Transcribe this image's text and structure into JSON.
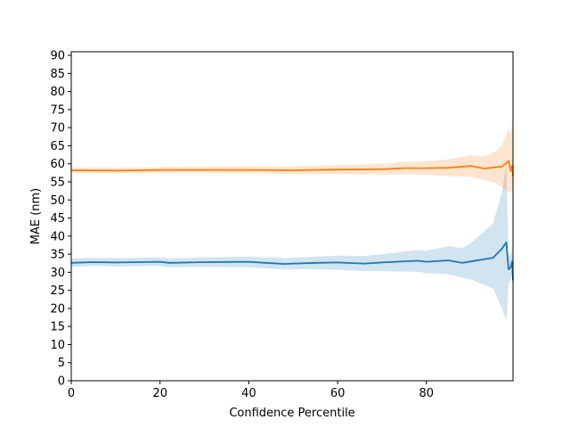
{
  "chart_data": {
    "type": "line",
    "xlabel": "Confidence Percentile",
    "ylabel": "MAE (nm)",
    "xlim": [
      0,
      99.5
    ],
    "ylim": [
      0,
      91
    ],
    "x_ticks": [
      0,
      20,
      40,
      60,
      80
    ],
    "y_ticks": [
      0,
      5,
      10,
      15,
      20,
      25,
      30,
      35,
      40,
      45,
      50,
      55,
      60,
      65,
      70,
      75,
      80,
      85,
      90
    ],
    "grid": false,
    "legend": "none",
    "series": [
      {
        "color": "#1f77b4",
        "band_color": "#1f77b4",
        "x": [
          0,
          5,
          10,
          20,
          22,
          30,
          40,
          45,
          48,
          55,
          60,
          66,
          70,
          78,
          80,
          85,
          88,
          90,
          95,
          97,
          98,
          98.5,
          99,
          99.3,
          99.5
        ],
        "y": [
          32.6,
          32.8,
          32.7,
          32.9,
          32.6,
          32.8,
          32.9,
          32.5,
          32.3,
          32.6,
          32.7,
          32.4,
          32.7,
          33.2,
          32.9,
          33.3,
          32.6,
          33.0,
          34.0,
          36.5,
          38.3,
          30.8,
          31.5,
          33.0,
          27.8
        ],
        "lower": [
          31.5,
          31.7,
          31.6,
          31.7,
          31.4,
          31.5,
          31.4,
          31.0,
          30.8,
          30.8,
          30.7,
          30.3,
          30.3,
          30.1,
          29.8,
          29.4,
          28.5,
          28.0,
          25.5,
          20.0,
          16.5,
          27.0,
          28.0,
          29.0,
          24.0
        ],
        "upper": [
          33.8,
          34.0,
          33.9,
          34.1,
          33.8,
          34.1,
          34.3,
          34.1,
          33.9,
          34.3,
          34.6,
          34.5,
          35.0,
          36.2,
          36.0,
          37.2,
          36.7,
          38.0,
          43.5,
          52.0,
          60.0,
          34.5,
          35.0,
          37.0,
          31.5
        ]
      },
      {
        "color": "#ff7f0e",
        "band_color": "#ff7f0e",
        "x": [
          0,
          10,
          20,
          30,
          40,
          50,
          60,
          70,
          75,
          80,
          85,
          90,
          93,
          95,
          97,
          98.5,
          99,
          99.3,
          99.5
        ],
        "y": [
          58.2,
          58.1,
          58.3,
          58.3,
          58.3,
          58.2,
          58.4,
          58.5,
          58.8,
          58.8,
          58.9,
          59.4,
          58.7,
          59.0,
          59.2,
          60.8,
          58.0,
          59.5,
          56.5
        ],
        "lower": [
          57.5,
          57.4,
          57.5,
          57.5,
          57.4,
          57.2,
          57.2,
          57.0,
          57.1,
          56.9,
          56.6,
          56.4,
          55.5,
          55.0,
          53.5,
          52.0,
          52.0,
          53.0,
          52.5
        ],
        "upper": [
          59.0,
          58.9,
          59.1,
          59.2,
          59.3,
          59.3,
          59.6,
          60.0,
          60.5,
          60.7,
          61.2,
          62.4,
          62.0,
          63.0,
          65.0,
          70.0,
          68.0,
          72.0,
          73.0
        ]
      }
    ]
  }
}
